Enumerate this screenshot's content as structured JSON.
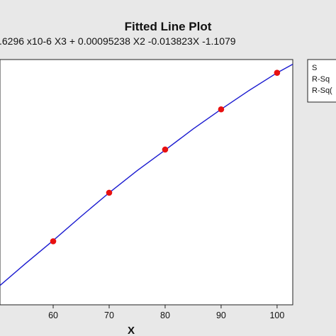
{
  "chart_data": {
    "type": "line",
    "title": "Fitted Line Plot",
    "subtitle": ".6296 x10-6 X3 + 0.00095238 X2 -0.013823X -1.1079",
    "xlabel": "X",
    "ylabel": "",
    "xlim": [
      50.5,
      102.8
    ],
    "ylim": [
      0,
      1.0
    ],
    "x_ticks": [
      60,
      70,
      80,
      90,
      100
    ],
    "points": {
      "name": "",
      "x": [
        60,
        70,
        80,
        90,
        100
      ],
      "y": [
        0.259,
        0.457,
        0.633,
        0.797,
        0.946
      ]
    },
    "fit": {
      "name": "",
      "x": [
        50.5,
        55,
        60,
        65,
        70,
        75,
        80,
        85,
        90,
        95,
        100,
        102.8
      ],
      "y": [
        0.079,
        0.167,
        0.262,
        0.361,
        0.457,
        0.547,
        0.631,
        0.717,
        0.797,
        0.874,
        0.946,
        0.981
      ]
    },
    "legend": {
      "placement": "right",
      "entries": [
        "S",
        "R-Sq",
        "R-Sq("
      ]
    },
    "grid": false,
    "colors": {
      "points": "#e81010",
      "fit_line": "#1a1ad0",
      "background": "#e8e8e8",
      "plot_area": "#ffffff"
    }
  }
}
